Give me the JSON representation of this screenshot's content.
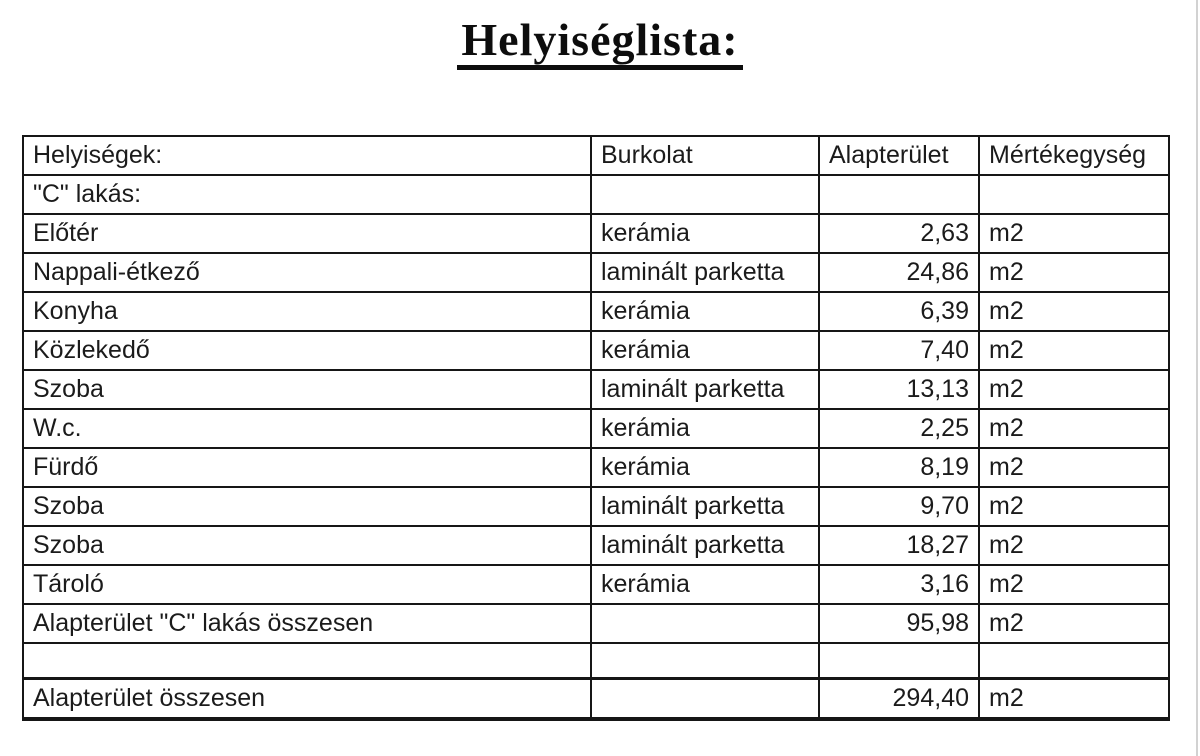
{
  "title": "Helyiséglista:",
  "table": {
    "columns": [
      "Helyiségek:",
      "Burkolat",
      "Alapterület",
      "Mértékegység"
    ],
    "rows": [
      {
        "type": "section",
        "name": "\"C\" lakás:",
        "flooring": "",
        "area": "",
        "unit": ""
      },
      {
        "type": "data",
        "name": "Előtér",
        "flooring": "kerámia",
        "area": "2,63",
        "unit": "m2"
      },
      {
        "type": "data",
        "name": "Nappali-étkező",
        "flooring": "laminált parketta",
        "area": "24,86",
        "unit": "m2"
      },
      {
        "type": "data",
        "name": "Konyha",
        "flooring": "kerámia",
        "area": "6,39",
        "unit": "m2"
      },
      {
        "type": "data",
        "name": "Közlekedő",
        "flooring": "kerámia",
        "area": "7,40",
        "unit": "m2"
      },
      {
        "type": "data",
        "name": "Szoba",
        "flooring": "laminált parketta",
        "area": "13,13",
        "unit": "m2"
      },
      {
        "type": "data",
        "name": "W.c.",
        "flooring": "kerámia",
        "area": "2,25",
        "unit": "m2"
      },
      {
        "type": "data",
        "name": "Fürdő",
        "flooring": "kerámia",
        "area": "8,19",
        "unit": "m2"
      },
      {
        "type": "data",
        "name": "Szoba",
        "flooring": "laminált parketta",
        "area": "9,70",
        "unit": "m2"
      },
      {
        "type": "data",
        "name": "Szoba",
        "flooring": "laminált parketta",
        "area": "18,27",
        "unit": "m2"
      },
      {
        "type": "data",
        "name": "Tároló",
        "flooring": "kerámia",
        "area": "3,16",
        "unit": "m2"
      },
      {
        "type": "subtotal",
        "name": "Alapterület \"C\" lakás összesen",
        "flooring": "",
        "area": "95,98",
        "unit": "m2"
      },
      {
        "type": "empty",
        "name": "",
        "flooring": "",
        "area": "",
        "unit": ""
      },
      {
        "type": "total",
        "name": "Alapterület összesen",
        "flooring": "",
        "area": "294,40",
        "unit": "m2"
      }
    ]
  }
}
